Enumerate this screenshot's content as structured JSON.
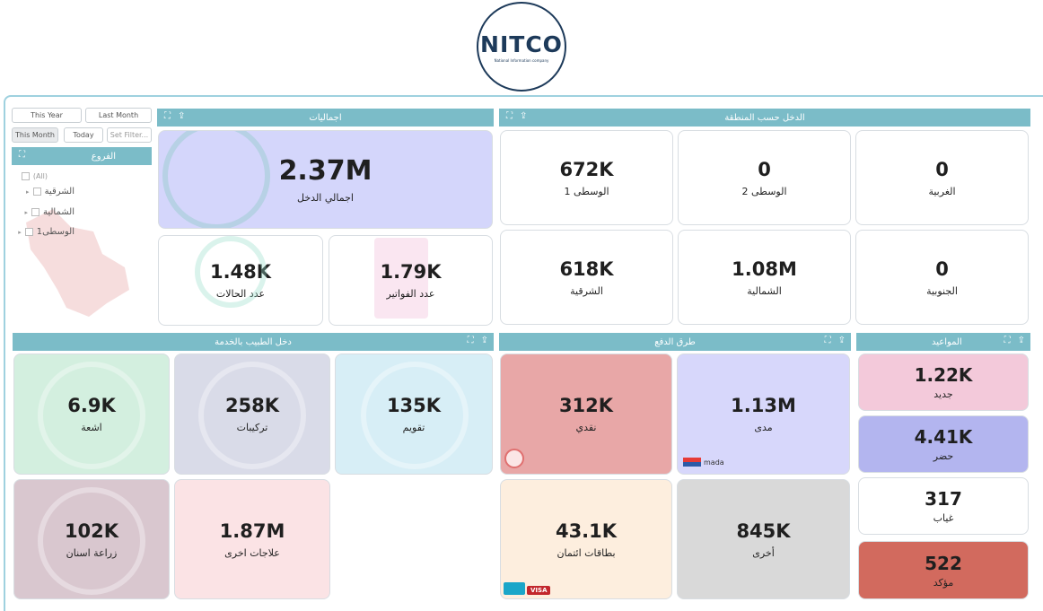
{
  "logo": {
    "text": "NITCO",
    "sub": "National Information company"
  },
  "filters": {
    "buttons": [
      "This Year",
      "Last Month",
      "This Month",
      "Today",
      "Set Filter..."
    ],
    "branches_title": "الفروع",
    "branches": [
      "(All)",
      "الشرقية",
      "الشمالية",
      "الوسطى1"
    ]
  },
  "totals": {
    "title": "اجماليات",
    "income": {
      "value": "2.37M",
      "label": "اجمالي الدخل"
    },
    "invoices": {
      "value": "1.79K",
      "label": "عدد الفواتير"
    },
    "cases": {
      "value": "1.48K",
      "label": "عدد الحالات"
    }
  },
  "regions": {
    "title": "الدخل حسب المنطقة",
    "tiles": [
      {
        "value": "0",
        "label": "الغربية"
      },
      {
        "value": "0",
        "label": "الوسطى 2"
      },
      {
        "value": "672K",
        "label": "الوسطى 1"
      },
      {
        "value": "0",
        "label": "الجنوبية"
      },
      {
        "value": "1.08M",
        "label": "الشمالية"
      },
      {
        "value": "618K",
        "label": "الشرقية"
      }
    ]
  },
  "doctor": {
    "title": "دخل الطبيب بالخدمة",
    "tiles": [
      {
        "value": "135K",
        "label": "تقويم"
      },
      {
        "value": "258K",
        "label": "تركيبات"
      },
      {
        "value": "6.9K",
        "label": "اشعة"
      },
      {
        "value": "1.87M",
        "label": "علاجات اخرى"
      },
      {
        "value": "102K",
        "label": "زراعة اسنان"
      }
    ]
  },
  "payment": {
    "title": "طرق الدفع",
    "tiles": [
      {
        "value": "1.13M",
        "label": "مدى"
      },
      {
        "value": "312K",
        "label": "نقدي"
      },
      {
        "value": "845K",
        "label": "أخرى"
      },
      {
        "value": "43.1K",
        "label": "بطاقات ائتمان"
      }
    ],
    "mada_badge": "mada",
    "visa_badge": "VISA"
  },
  "appointments": {
    "title": "المواعيد",
    "tiles": [
      {
        "value": "1.22K",
        "label": "جديد"
      },
      {
        "value": "4.41K",
        "label": "حضر"
      },
      {
        "value": "317",
        "label": "غياب"
      },
      {
        "value": "522",
        "label": "مؤكد"
      }
    ]
  },
  "colors": {
    "header": "#7bbcc8",
    "income_bg": "#d4d6fb",
    "xray_bg": "#d3efdf",
    "prosth_bg": "#d9dbe8",
    "ortho_bg": "#d7eef6",
    "implant_bg": "#d9c7cf",
    "other_treat_bg": "#fbe3e5",
    "cash_bg": "#e8a7a7",
    "mada_bg": "#d7d7fb",
    "card_bg": "#fdeede",
    "other_pay_bg": "#d9d9d9",
    "new_bg": "#f3c9da",
    "attend_bg": "#b3b5ef",
    "absent_bg": "#ffffff",
    "confirmed_bg": "#d26a5e"
  }
}
